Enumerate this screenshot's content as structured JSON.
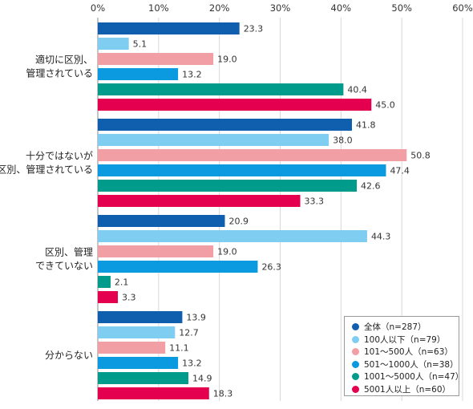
{
  "chart_data": {
    "type": "bar",
    "orientation": "horizontal",
    "xlim": [
      0,
      60
    ],
    "x_ticks": [
      "0%",
      "10%",
      "20%",
      "30%",
      "40%",
      "50%",
      "60%"
    ],
    "grid": true,
    "legend_position": "bottom-right",
    "categories": [
      "適切に区別、\n管理されている",
      "十分ではないが\n区別、管理されている",
      "区別、管理\nできていない",
      "分からない"
    ],
    "series": [
      {
        "name": "全体（n=287）",
        "color": "#0f5fae",
        "values": [
          23.3,
          41.8,
          20.9,
          13.9
        ]
      },
      {
        "name": "100人以下（n=79）",
        "color": "#7fcef2",
        "values": [
          5.1,
          38.0,
          44.3,
          12.7
        ]
      },
      {
        "name": "101～500人（n=63）",
        "color": "#f19ea5",
        "values": [
          19.0,
          50.8,
          19.0,
          11.1
        ]
      },
      {
        "name": "501～1000人（n=38）",
        "color": "#0b9ae0",
        "values": [
          13.2,
          47.4,
          26.3,
          13.2
        ]
      },
      {
        "name": "1001～5000人（n=47）",
        "color": "#009b8a",
        "values": [
          40.4,
          42.6,
          2.1,
          14.9
        ]
      },
      {
        "name": "5001人以上（n=60）",
        "color": "#e4004f",
        "values": [
          45.0,
          33.3,
          3.3,
          18.3
        ]
      }
    ],
    "value_labels": [
      [
        "23.3",
        "41.8",
        "20.9",
        "13.9"
      ],
      [
        "5.1",
        "38.0",
        "44.3",
        "12.7"
      ],
      [
        "19.0",
        "50.8",
        "19.0",
        "11.1"
      ],
      [
        "13.2",
        "47.4",
        "26.3",
        "13.2"
      ],
      [
        "40.4",
        "42.6",
        "2.1",
        "14.9"
      ],
      [
        "45.0",
        "33.3",
        "3.3",
        "18.3"
      ]
    ]
  }
}
